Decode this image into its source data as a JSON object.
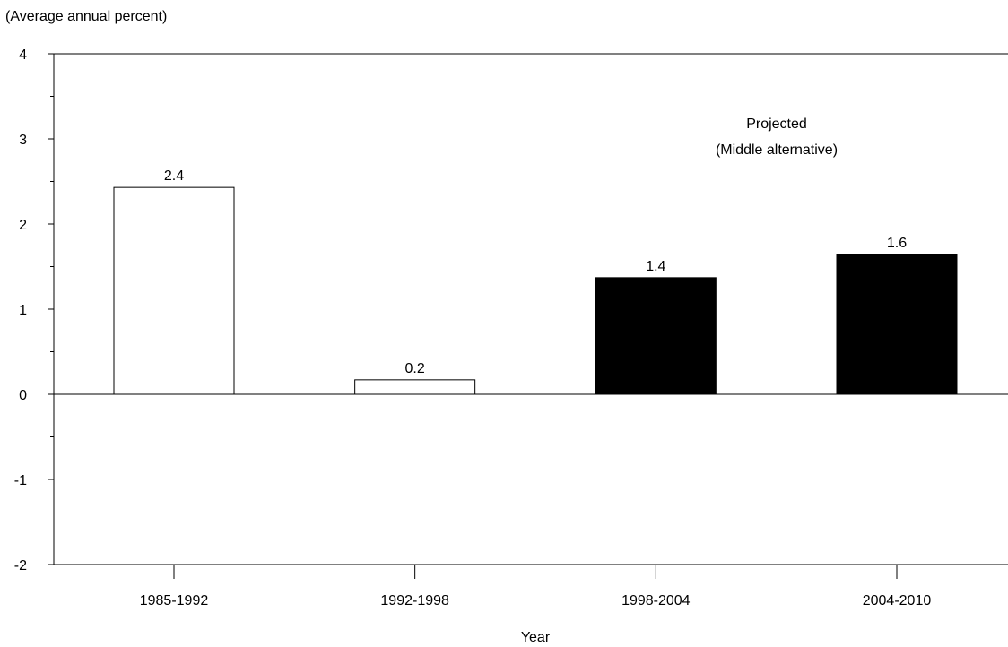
{
  "chart_data": {
    "type": "bar",
    "ylabel": "(Average annual percent)",
    "xlabel": "Year",
    "categories": [
      "1985-1992",
      "1992-1998",
      "1998-2004",
      "2004-2010"
    ],
    "values": [
      2.43,
      0.17,
      1.37,
      1.64
    ],
    "value_labels": [
      "2.4",
      "0.2",
      "1.4",
      "1.6"
    ],
    "projected": [
      false,
      false,
      true,
      true
    ],
    "colors": {
      "actual_fill": "#ffffff",
      "projected_fill": "#000000",
      "stroke": "#000000"
    },
    "ylim": [
      -2,
      4
    ],
    "yticks_major": [
      -2,
      -1,
      0,
      1,
      2,
      3,
      4
    ],
    "yticks_major_labels": [
      "-2",
      "-1",
      "0",
      "1",
      "2",
      "3",
      "4"
    ],
    "yticks_minor": [
      -1.5,
      -0.5,
      0.5,
      1.5,
      2.5,
      3.5
    ],
    "annotation": [
      "Projected",
      "(Middle alternative)"
    ],
    "grid": false
  }
}
